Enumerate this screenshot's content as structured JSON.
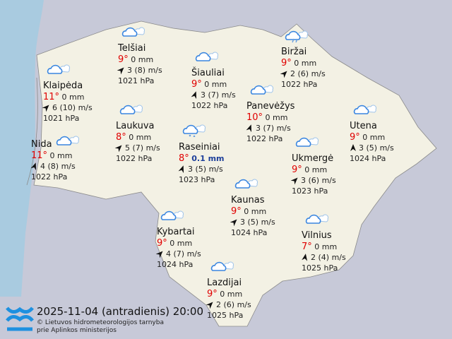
{
  "colors": {
    "sea": "#a9cbe0",
    "land": "#f3f1e4",
    "background": "#c7c9d8",
    "temperature": "#e00000",
    "precipitation": "#1d3f9a"
  },
  "cities": [
    {
      "name": "Telšiai",
      "temp": "9°",
      "precip": "0 mm",
      "wind": "3 (8) m/s",
      "wind_dir": 45,
      "pressure": "1021 hPa",
      "icon": "cloudy-icon"
    },
    {
      "name": "Biržai",
      "temp": "9°",
      "precip": "0 mm",
      "wind": "2 (6) m/s",
      "wind_dir": 45,
      "pressure": "1022 hPa",
      "icon": "drizzle-icon"
    },
    {
      "name": "Šiauliai",
      "temp": "9°",
      "precip": "0 mm",
      "wind": "3 (7) m/s",
      "wind_dir": 20,
      "pressure": "1022 hPa",
      "icon": "cloudy-icon"
    },
    {
      "name": "Klaipėda",
      "temp": "11°",
      "precip": "0 mm",
      "wind": "6 (10) m/s",
      "wind_dir": 45,
      "pressure": "1021 hPa",
      "icon": "cloudy-icon"
    },
    {
      "name": "Panevėžys",
      "temp": "10°",
      "precip": "0 mm",
      "wind": "3 (7) m/s",
      "wind_dir": 20,
      "pressure": "1022 hPa",
      "icon": "cloudy-icon"
    },
    {
      "name": "Laukuva",
      "temp": "8°",
      "precip": "0 mm",
      "wind": "5 (7) m/s",
      "wind_dir": 45,
      "pressure": "1022 hPa",
      "icon": "cloudy-icon"
    },
    {
      "name": "Utena",
      "temp": "9°",
      "precip": "0 mm",
      "wind": "3 (5) m/s",
      "wind_dir": 0,
      "pressure": "1024 hPa",
      "icon": "cloudy-icon"
    },
    {
      "name": "Nida",
      "temp": "11°",
      "precip": "0 mm",
      "wind": "4 (8) m/s",
      "wind_dir": 20,
      "pressure": "1022 hPa",
      "icon": "cloudy-icon"
    },
    {
      "name": "Raseiniai",
      "temp": "8°",
      "precip": "0.1 mm",
      "wet": true,
      "wind": "3 (5) m/s",
      "wind_dir": 20,
      "pressure": "1023 hPa",
      "icon": "rain-icon"
    },
    {
      "name": "Ukmergė",
      "temp": "9°",
      "precip": "0 mm",
      "wind": "3 (6) m/s",
      "wind_dir": 45,
      "pressure": "1023 hPa",
      "icon": "cloudy-icon"
    },
    {
      "name": "Kaunas",
      "temp": "9°",
      "precip": "0 mm",
      "wind": "3 (5) m/s",
      "wind_dir": 45,
      "pressure": "1024 hPa",
      "icon": "cloudy-icon"
    },
    {
      "name": "Kybartai",
      "temp": "9°",
      "precip": "0 mm",
      "wind": "4 (7) m/s",
      "wind_dir": 45,
      "pressure": "1024 hPa",
      "icon": "cloudy-icon"
    },
    {
      "name": "Vilnius",
      "temp": "7°",
      "precip": "0 mm",
      "wind": "2 (4) m/s",
      "wind_dir": 10,
      "pressure": "1025 hPa",
      "icon": "cloudy-icon"
    },
    {
      "name": "Lazdijai",
      "temp": "9°",
      "precip": "0 mm",
      "wind": "2 (6) m/s",
      "wind_dir": 45,
      "pressure": "1025 hPa",
      "icon": "cloudy-icon"
    }
  ],
  "footer": {
    "datetime": "2025-11-04 (antradienis) 20:00",
    "copyright_line1": "© Lietuvos hidrometeorologijos tarnyba",
    "copyright_line2": "prie Aplinkos ministerijos",
    "logo_text": "Lietuvos hidrometeorologijos tarnyba"
  }
}
